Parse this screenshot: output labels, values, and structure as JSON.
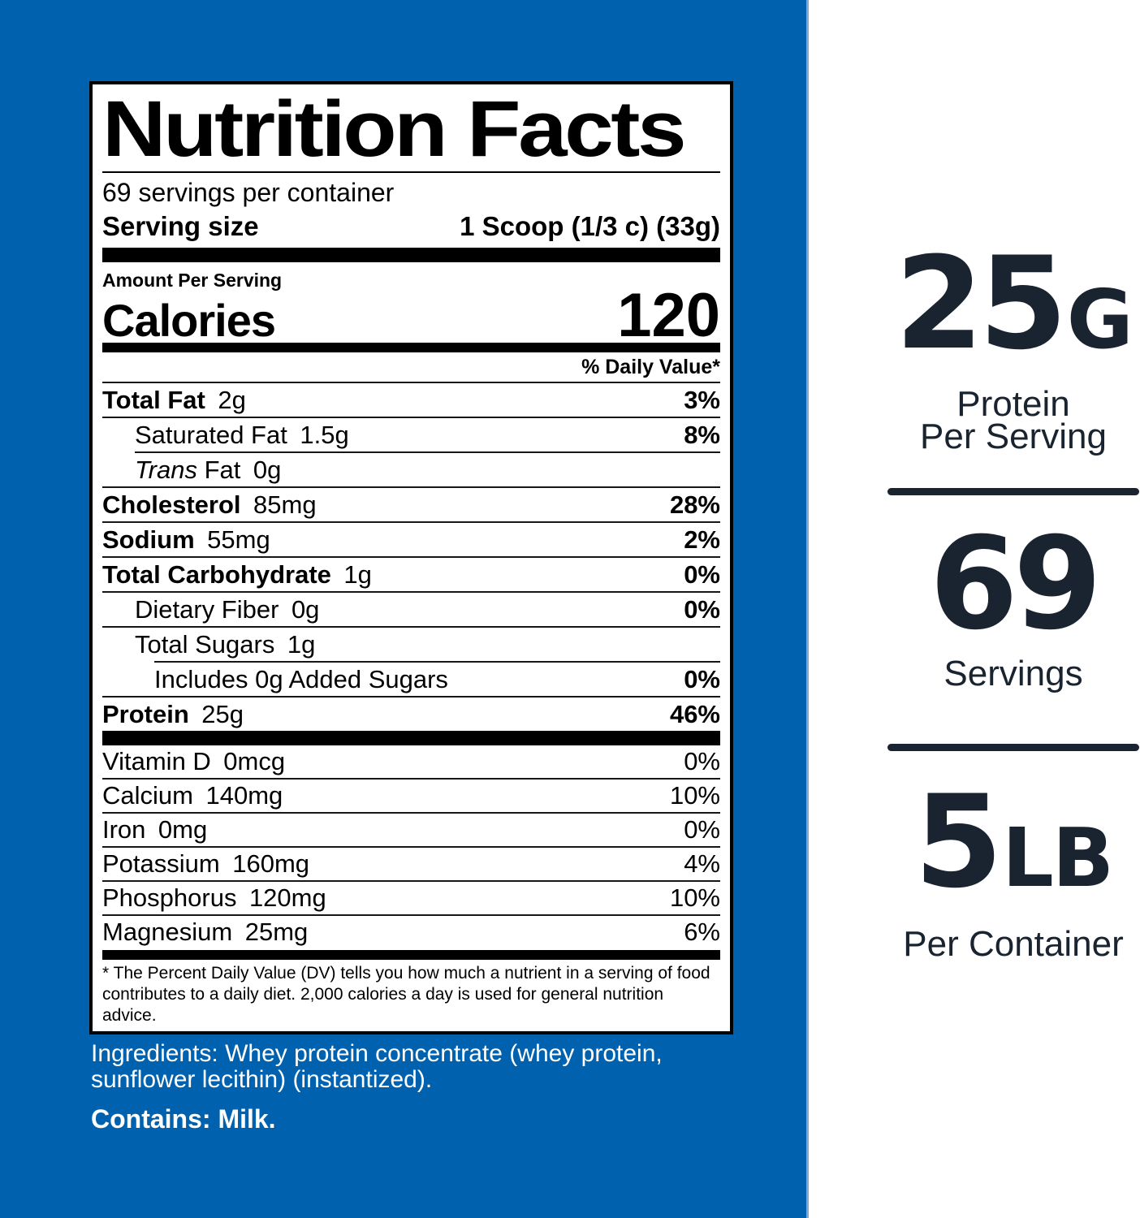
{
  "colors": {
    "background_blue": "#0061ae",
    "navy_text": "#1a2430",
    "label_black": "#000000",
    "label_white": "#ffffff"
  },
  "label": {
    "title": "Nutrition Facts",
    "servings_per_container": "69 servings per container",
    "serving_size_label": "Serving size",
    "serving_size_value": "1 Scoop (1/3 c) (33g)",
    "amount_per_serving": "Amount Per Serving",
    "calories_label": "Calories",
    "calories_value": "120",
    "daily_value_header": "% Daily Value*",
    "rows": [
      {
        "name": "Total Fat",
        "amount": "2g",
        "dv": "3%",
        "bold": true,
        "indent": 0,
        "sep": "full"
      },
      {
        "name": "Saturated Fat",
        "amount": "1.5g",
        "dv": "8%",
        "bold": false,
        "indent": 1,
        "sep": "full"
      },
      {
        "italic": "Trans",
        "name": "Fat",
        "amount": "0g",
        "dv": "",
        "bold": false,
        "indent": 1,
        "sep": "indent1"
      },
      {
        "name": "Cholesterol",
        "amount": "85mg",
        "dv": "28%",
        "bold": true,
        "indent": 0,
        "sep": "full"
      },
      {
        "name": "Sodium",
        "amount": "55mg",
        "dv": "2%",
        "bold": true,
        "indent": 0,
        "sep": "full"
      },
      {
        "name": "Total Carbohydrate",
        "amount": "1g",
        "dv": "0%",
        "bold": true,
        "indent": 0,
        "sep": "full"
      },
      {
        "name": "Dietary Fiber",
        "amount": "0g",
        "dv": "0%",
        "bold": false,
        "indent": 1,
        "sep": "full"
      },
      {
        "name": "Total Sugars",
        "amount": "1g",
        "dv": "",
        "bold": false,
        "indent": 1,
        "sep": "full"
      },
      {
        "name": "Includes 0g Added Sugars",
        "amount": "",
        "dv": "0%",
        "bold": false,
        "indent": 2,
        "sep": "indent2"
      },
      {
        "name": "Protein",
        "amount": "25g",
        "dv": "46%",
        "bold": true,
        "indent": 0,
        "sep": "full"
      }
    ],
    "micronutrients": [
      {
        "name": "Vitamin D",
        "amount": "0mcg",
        "dv": "0%"
      },
      {
        "name": "Calcium",
        "amount": "140mg",
        "dv": "10%"
      },
      {
        "name": "Iron",
        "amount": "0mg",
        "dv": "0%"
      },
      {
        "name": "Potassium",
        "amount": "160mg",
        "dv": "4%"
      },
      {
        "name": "Phosphorus",
        "amount": "120mg",
        "dv": "10%"
      },
      {
        "name": "Magnesium",
        "amount": "25mg",
        "dv": "6%"
      }
    ],
    "footnote": "* The Percent Daily Value (DV) tells you how much a nutrient in a serving of food contributes to a daily diet. 2,000 calories a day is used for general nutrition advice."
  },
  "ingredients": "Ingredients: Whey protein concentrate (whey protein, sunflower lecithin) (instantized).",
  "contains": "Contains: Milk.",
  "highlights": [
    {
      "key": "protein-per-serving",
      "value": "25",
      "suffix": "G",
      "lines": [
        "Protein",
        "Per Serving"
      ],
      "divider_below": true
    },
    {
      "key": "servings",
      "value": "69",
      "suffix": "",
      "lines": [
        "Servings"
      ],
      "divider_below": true
    },
    {
      "key": "weight-per-container",
      "value": "5",
      "suffix": "LB",
      "lines": [
        "Per Container"
      ],
      "divider_below": false
    }
  ]
}
